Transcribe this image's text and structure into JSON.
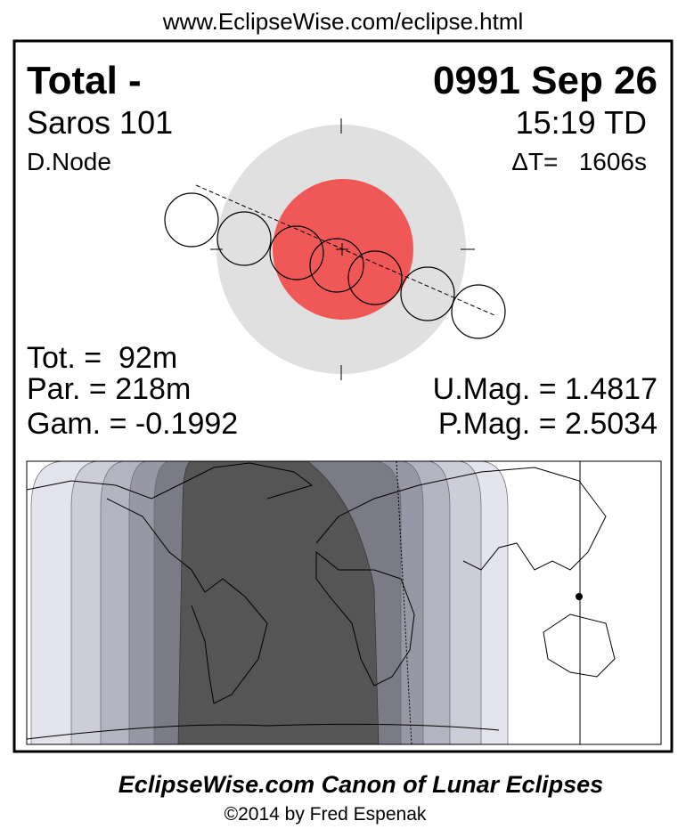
{
  "header": {
    "url": "www.EclipseWise.com/eclipse.html"
  },
  "panel": {
    "type_label": "Total  -",
    "date": "0991 Sep 26",
    "saros": "Saros 101",
    "time": "15:19 TD",
    "node": "D.Node",
    "delta_t": "ΔT=   1606s",
    "totality": "Tot. =  92m",
    "partial": "Par. = 218m",
    "gamma": "Gam. = -0.1992",
    "umbral_mag": "U.Mag. = 1.4817",
    "penumbral_mag": "P.Mag. = 2.5034"
  },
  "footer": {
    "title": "EclipseWise.com Canon of Lunar Eclipses",
    "credit": "©2014 by Fred Espenak"
  }
}
